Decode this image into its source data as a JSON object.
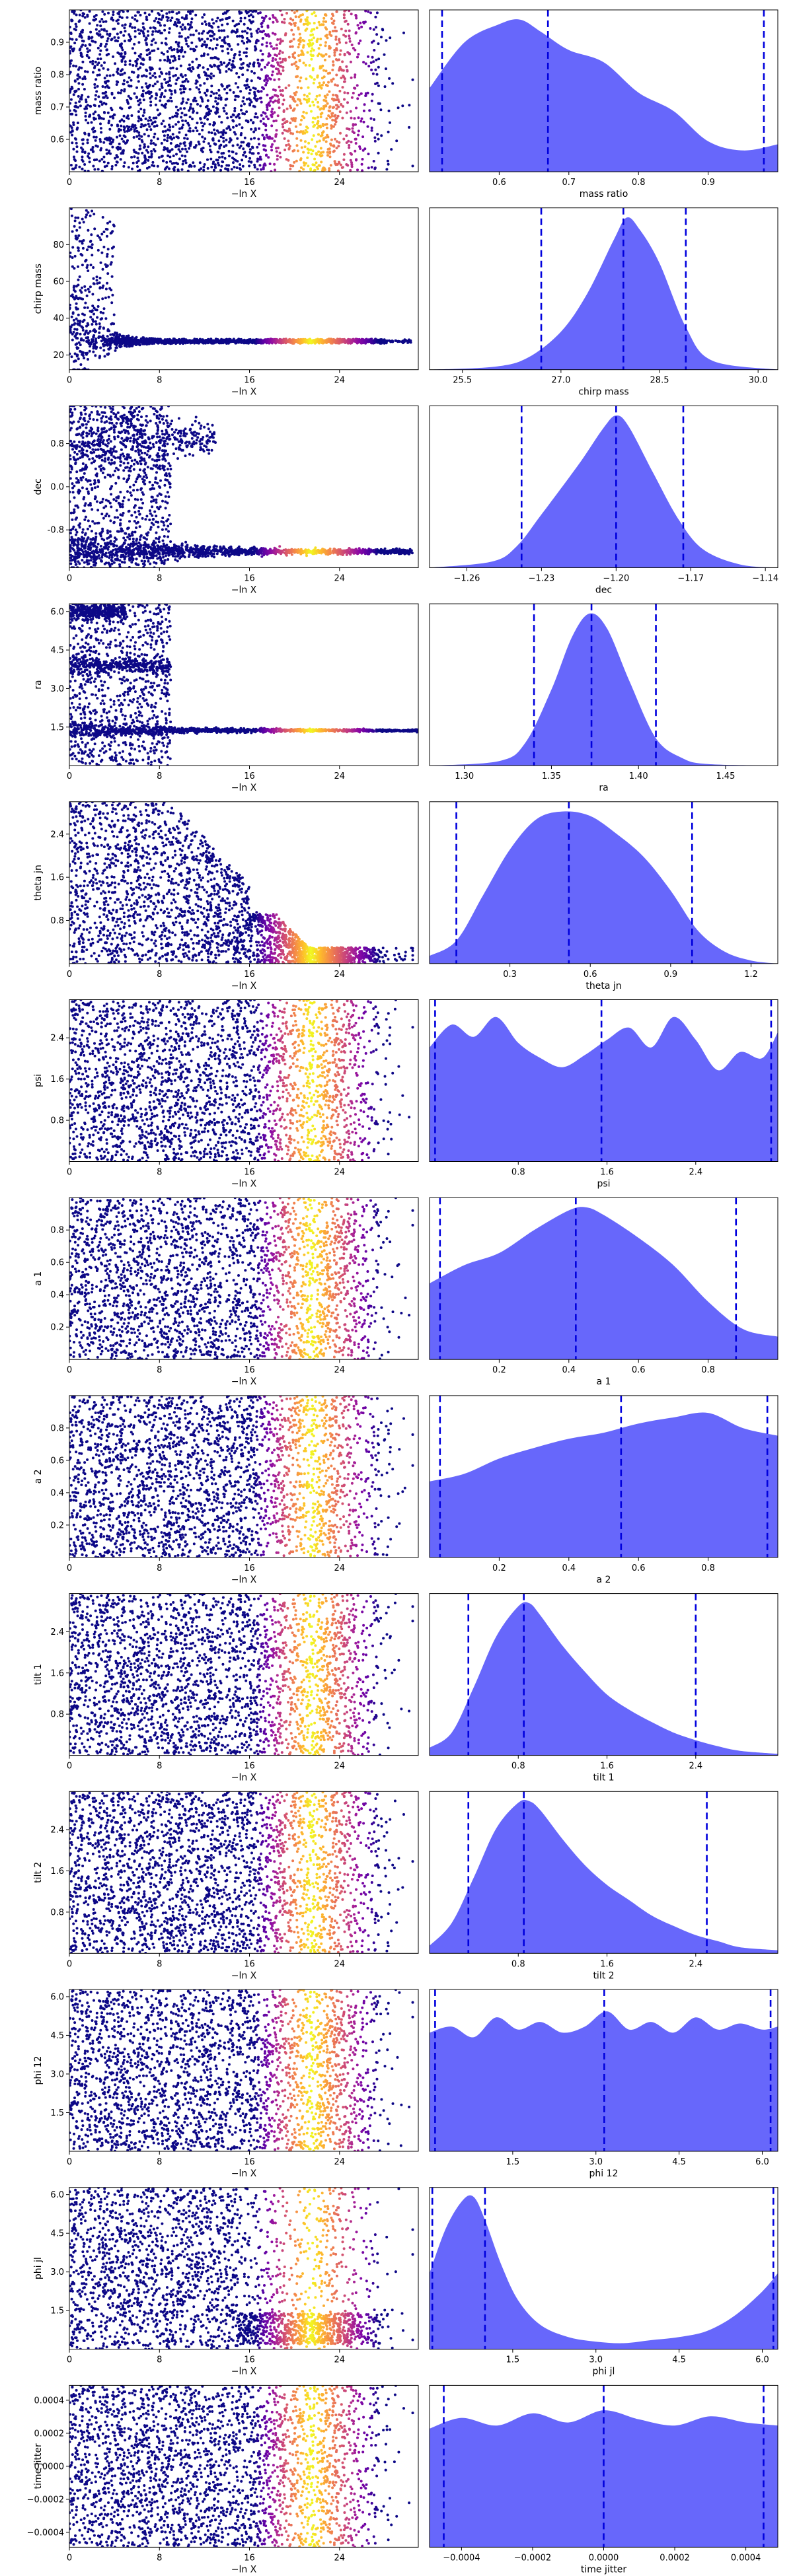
{
  "chart_data": [
    {
      "type": "scatter",
      "ylabel": "mass ratio",
      "xlabel": "−ln X",
      "x_ticks": [
        "0",
        "8",
        "16",
        "24"
      ],
      "y_ticks": [
        "0.6",
        "0.7",
        "0.8",
        "0.9"
      ],
      "x_range": [
        0,
        31
      ],
      "y_range": [
        0.5,
        1.0
      ],
      "pattern": "uniform",
      "colormap": "plasma",
      "posterior": {
        "xlabel": "mass ratio",
        "x_ticks": [
          "0.6",
          "0.7",
          "0.8",
          "0.9"
        ],
        "x_range": [
          0.5,
          1.0
        ],
        "quantiles": [
          0.518,
          0.67,
          0.98
        ],
        "density_x": [
          0.5,
          0.55,
          0.6,
          0.63,
          0.66,
          0.7,
          0.75,
          0.8,
          0.85,
          0.9,
          0.95,
          1.0
        ],
        "density_y": [
          0.55,
          0.85,
          0.97,
          1.0,
          0.92,
          0.8,
          0.72,
          0.52,
          0.4,
          0.2,
          0.14,
          0.18
        ]
      }
    },
    {
      "type": "scatter",
      "ylabel": "chirp mass",
      "xlabel": "−ln X",
      "x_ticks": [
        "0",
        "8",
        "16",
        "24"
      ],
      "y_ticks": [
        "20",
        "40",
        "60",
        "80"
      ],
      "x_range": [
        0,
        31
      ],
      "y_range": [
        12,
        100
      ],
      "pattern": "funnel",
      "colormap": "plasma",
      "posterior": {
        "xlabel": "chirp mass",
        "x_ticks": [
          "25.5",
          "27.0",
          "28.5",
          "30.0"
        ],
        "x_range": [
          25.0,
          30.3
        ],
        "quantiles": [
          26.7,
          27.95,
          28.9
        ],
        "density_x": [
          25.0,
          26.0,
          26.5,
          27.0,
          27.4,
          27.8,
          28.0,
          28.2,
          28.5,
          28.9,
          29.3,
          30.3
        ],
        "density_y": [
          0.0,
          0.02,
          0.08,
          0.25,
          0.5,
          0.85,
          1.0,
          0.92,
          0.7,
          0.28,
          0.06,
          0.0
        ]
      }
    },
    {
      "type": "scatter",
      "ylabel": "dec",
      "xlabel": "−ln X",
      "x_ticks": [
        "0",
        "8",
        "16",
        "24"
      ],
      "y_ticks": [
        "-0.8",
        "0.0",
        "0.8"
      ],
      "x_range": [
        0,
        31
      ],
      "y_range": [
        -1.5,
        1.5
      ],
      "pattern": "dec",
      "colormap": "plasma",
      "posterior": {
        "xlabel": "dec",
        "x_ticks": [
          "−1.26",
          "−1.23",
          "−1.20",
          "−1.17",
          "−1.14"
        ],
        "x_range": [
          -1.275,
          -1.135
        ],
        "quantiles": [
          -1.238,
          -1.2,
          -1.173
        ],
        "density_x": [
          -1.275,
          -1.25,
          -1.24,
          -1.23,
          -1.215,
          -1.205,
          -1.2,
          -1.195,
          -1.185,
          -1.175,
          -1.165,
          -1.15,
          -1.135
        ],
        "density_y": [
          0.0,
          0.04,
          0.14,
          0.35,
          0.68,
          0.92,
          1.0,
          0.93,
          0.62,
          0.32,
          0.12,
          0.02,
          0.0
        ]
      }
    },
    {
      "type": "scatter",
      "ylabel": "ra",
      "xlabel": "−ln X",
      "x_ticks": [
        "0",
        "8",
        "16",
        "24"
      ],
      "y_ticks": [
        "1.5",
        "3.0",
        "4.5",
        "6.0"
      ],
      "x_range": [
        0,
        31
      ],
      "y_range": [
        0.0,
        6.3
      ],
      "pattern": "ra",
      "colormap": "plasma",
      "posterior": {
        "xlabel": "ra",
        "x_ticks": [
          "1.30",
          "1.35",
          "1.40",
          "1.45"
        ],
        "x_range": [
          1.28,
          1.48
        ],
        "quantiles": [
          1.34,
          1.373,
          1.41
        ],
        "density_x": [
          1.28,
          1.32,
          1.335,
          1.35,
          1.362,
          1.372,
          1.382,
          1.395,
          1.41,
          1.425,
          1.44,
          1.48
        ],
        "density_y": [
          0.0,
          0.03,
          0.15,
          0.5,
          0.85,
          1.0,
          0.9,
          0.55,
          0.18,
          0.05,
          0.01,
          0.0
        ]
      }
    },
    {
      "type": "scatter",
      "ylabel": "theta jn",
      "xlabel": "−ln X",
      "x_ticks": [
        "0",
        "8",
        "16",
        "24"
      ],
      "y_ticks": [
        "0.8",
        "1.6",
        "2.4"
      ],
      "x_range": [
        0,
        31
      ],
      "y_range": [
        0.0,
        3.0
      ],
      "pattern": "theta",
      "colormap": "plasma",
      "posterior": {
        "xlabel": "theta jn",
        "x_ticks": [
          "0.3",
          "0.6",
          "0.9",
          "1.2"
        ],
        "x_range": [
          0.0,
          1.3
        ],
        "quantiles": [
          0.1,
          0.52,
          0.98
        ],
        "density_x": [
          0.0,
          0.1,
          0.2,
          0.3,
          0.4,
          0.5,
          0.6,
          0.7,
          0.8,
          0.9,
          1.0,
          1.1,
          1.2,
          1.3
        ],
        "density_y": [
          0.05,
          0.15,
          0.45,
          0.75,
          0.95,
          1.0,
          0.97,
          0.85,
          0.7,
          0.48,
          0.22,
          0.08,
          0.02,
          0.0
        ]
      }
    },
    {
      "type": "scatter",
      "ylabel": "psi",
      "xlabel": "−ln X",
      "x_ticks": [
        "0",
        "8",
        "16",
        "24"
      ],
      "y_ticks": [
        "0.8",
        "1.6",
        "2.4"
      ],
      "x_range": [
        0,
        31
      ],
      "y_range": [
        0.0,
        3.14
      ],
      "pattern": "uniform",
      "colormap": "plasma",
      "posterior": {
        "xlabel": "psi",
        "x_ticks": [
          "0.8",
          "1.6",
          "2.4"
        ],
        "x_range": [
          0.0,
          3.14
        ],
        "quantiles": [
          0.05,
          1.55,
          3.08
        ],
        "density_x": [
          0.0,
          0.2,
          0.4,
          0.6,
          0.8,
          1.0,
          1.2,
          1.4,
          1.6,
          1.8,
          2.0,
          2.2,
          2.4,
          2.6,
          2.8,
          3.0,
          3.14
        ],
        "density_y": [
          0.75,
          0.9,
          0.82,
          0.95,
          0.78,
          0.68,
          0.62,
          0.7,
          0.8,
          0.88,
          0.75,
          0.95,
          0.8,
          0.6,
          0.72,
          0.68,
          0.85
        ]
      }
    },
    {
      "type": "scatter",
      "ylabel": "a 1",
      "xlabel": "−ln X",
      "x_ticks": [
        "0",
        "8",
        "16",
        "24"
      ],
      "y_ticks": [
        "0.2",
        "0.4",
        "0.6",
        "0.8"
      ],
      "x_range": [
        0,
        31
      ],
      "y_range": [
        0.0,
        1.0
      ],
      "pattern": "uniform",
      "colormap": "plasma",
      "posterior": {
        "xlabel": "a 1",
        "x_ticks": [
          "0.2",
          "0.4",
          "0.6",
          "0.8"
        ],
        "x_range": [
          0.0,
          1.0
        ],
        "quantiles": [
          0.03,
          0.42,
          0.88
        ],
        "density_x": [
          0.0,
          0.1,
          0.2,
          0.3,
          0.4,
          0.45,
          0.5,
          0.6,
          0.7,
          0.8,
          0.9,
          1.0
        ],
        "density_y": [
          0.5,
          0.62,
          0.7,
          0.85,
          0.98,
          1.0,
          0.95,
          0.8,
          0.62,
          0.38,
          0.2,
          0.15
        ]
      }
    },
    {
      "type": "scatter",
      "ylabel": "a 2",
      "xlabel": "−ln X",
      "x_ticks": [
        "0",
        "8",
        "16",
        "24"
      ],
      "y_ticks": [
        "0.2",
        "0.4",
        "0.6",
        "0.8"
      ],
      "x_range": [
        0,
        31
      ],
      "y_range": [
        0.0,
        1.0
      ],
      "pattern": "uniform",
      "colormap": "plasma",
      "posterior": {
        "xlabel": "a 2",
        "x_ticks": [
          "0.2",
          "0.4",
          "0.6",
          "0.8"
        ],
        "x_range": [
          0.0,
          1.0
        ],
        "quantiles": [
          0.03,
          0.55,
          0.97
        ],
        "density_x": [
          0.0,
          0.1,
          0.2,
          0.3,
          0.4,
          0.5,
          0.6,
          0.7,
          0.8,
          0.9,
          1.0
        ],
        "density_y": [
          0.5,
          0.55,
          0.65,
          0.72,
          0.78,
          0.82,
          0.88,
          0.92,
          0.95,
          0.85,
          0.8
        ]
      }
    },
    {
      "type": "scatter",
      "ylabel": "tilt 1",
      "xlabel": "−ln X",
      "x_ticks": [
        "0",
        "8",
        "16",
        "24"
      ],
      "y_ticks": [
        "0.8",
        "1.6",
        "2.4"
      ],
      "x_range": [
        0,
        31
      ],
      "y_range": [
        0.0,
        3.14
      ],
      "pattern": "uniform",
      "colormap": "plasma",
      "posterior": {
        "xlabel": "tilt 1",
        "x_ticks": [
          "0.8",
          "1.6",
          "2.4"
        ],
        "x_range": [
          0.0,
          3.14
        ],
        "quantiles": [
          0.35,
          0.85,
          2.4
        ],
        "density_x": [
          0.0,
          0.2,
          0.4,
          0.6,
          0.8,
          0.9,
          1.0,
          1.2,
          1.4,
          1.6,
          1.8,
          2.0,
          2.2,
          2.4,
          2.6,
          2.8,
          3.14
        ],
        "density_y": [
          0.05,
          0.15,
          0.45,
          0.78,
          0.98,
          1.0,
          0.92,
          0.72,
          0.55,
          0.4,
          0.3,
          0.22,
          0.15,
          0.1,
          0.06,
          0.03,
          0.01
        ]
      }
    },
    {
      "type": "scatter",
      "ylabel": "tilt 2",
      "xlabel": "−ln X",
      "x_ticks": [
        "0",
        "8",
        "16",
        "24"
      ],
      "y_ticks": [
        "0.8",
        "1.6",
        "2.4"
      ],
      "x_range": [
        0,
        31
      ],
      "y_range": [
        0.0,
        3.14
      ],
      "pattern": "uniform",
      "colormap": "plasma",
      "posterior": {
        "xlabel": "tilt 2",
        "x_ticks": [
          "0.8",
          "1.6",
          "2.4"
        ],
        "x_range": [
          0.0,
          3.14
        ],
        "quantiles": [
          0.35,
          0.85,
          2.5
        ],
        "density_x": [
          0.0,
          0.2,
          0.4,
          0.6,
          0.8,
          0.9,
          1.0,
          1.2,
          1.4,
          1.6,
          1.8,
          2.0,
          2.2,
          2.4,
          2.6,
          2.8,
          3.14
        ],
        "density_y": [
          0.05,
          0.2,
          0.5,
          0.82,
          0.99,
          1.0,
          0.94,
          0.75,
          0.58,
          0.45,
          0.35,
          0.25,
          0.18,
          0.12,
          0.08,
          0.04,
          0.02
        ]
      }
    },
    {
      "type": "scatter",
      "ylabel": "phi 12",
      "xlabel": "−ln X",
      "x_ticks": [
        "0",
        "8",
        "16",
        "24"
      ],
      "y_ticks": [
        "1.5",
        "3.0",
        "4.5",
        "6.0"
      ],
      "x_range": [
        0,
        31
      ],
      "y_range": [
        0.0,
        6.28
      ],
      "pattern": "uniform",
      "colormap": "plasma",
      "posterior": {
        "xlabel": "phi 12",
        "x_ticks": [
          "1.5",
          "3.0",
          "4.5",
          "6.0"
        ],
        "x_range": [
          0.0,
          6.28
        ],
        "quantiles": [
          0.1,
          3.15,
          6.15
        ],
        "density_x": [
          0.0,
          0.4,
          0.8,
          1.2,
          1.6,
          2.0,
          2.4,
          2.8,
          3.2,
          3.6,
          4.0,
          4.4,
          4.8,
          5.2,
          5.6,
          6.0,
          6.28
        ],
        "density_y": [
          0.78,
          0.82,
          0.75,
          0.88,
          0.8,
          0.85,
          0.78,
          0.82,
          0.92,
          0.8,
          0.85,
          0.78,
          0.88,
          0.8,
          0.84,
          0.8,
          0.82
        ]
      }
    },
    {
      "type": "scatter",
      "ylabel": "phi jl",
      "xlabel": "−ln X",
      "x_ticks": [
        "0",
        "8",
        "16",
        "24"
      ],
      "y_ticks": [
        "1.5",
        "3.0",
        "4.5",
        "6.0"
      ],
      "x_range": [
        0,
        31
      ],
      "y_range": [
        0.0,
        6.28
      ],
      "pattern": "phijl",
      "colormap": "plasma",
      "posterior": {
        "xlabel": "phi jl",
        "x_ticks": [
          "1.5",
          "3.0",
          "4.5",
          "6.0"
        ],
        "x_range": [
          0.0,
          6.28
        ],
        "quantiles": [
          0.05,
          1.0,
          6.2
        ],
        "density_x": [
          0.0,
          0.3,
          0.6,
          0.8,
          1.0,
          1.3,
          1.6,
          2.0,
          2.5,
          3.0,
          3.5,
          4.0,
          4.5,
          5.0,
          5.5,
          6.0,
          6.28
        ],
        "density_y": [
          0.5,
          0.8,
          0.98,
          1.0,
          0.85,
          0.55,
          0.32,
          0.16,
          0.08,
          0.05,
          0.04,
          0.06,
          0.08,
          0.12,
          0.22,
          0.38,
          0.5
        ]
      }
    },
    {
      "type": "scatter",
      "ylabel": "time jitter",
      "xlabel": "−ln X",
      "x_ticks": [
        "0",
        "8",
        "16",
        "24"
      ],
      "y_ticks": [
        "−0.0004",
        "−0.0002",
        "0.0000",
        "0.0002",
        "0.0004"
      ],
      "x_range": [
        0,
        31
      ],
      "y_range": [
        -0.00049,
        0.00049
      ],
      "pattern": "uniform",
      "colormap": "plasma",
      "posterior": {
        "xlabel": "time jitter",
        "x_ticks": [
          "−0.0004",
          "−0.0002",
          "0.0000",
          "0.0002",
          "0.0004"
        ],
        "x_range": [
          -0.00049,
          0.00049
        ],
        "quantiles": [
          -0.00045,
          0.0,
          0.00045
        ],
        "density_x": [
          -0.00049,
          -0.0004,
          -0.0003,
          -0.0002,
          -0.0001,
          0.0,
          0.0001,
          0.0002,
          0.0003,
          0.0004,
          0.00049
        ],
        "density_y": [
          0.78,
          0.85,
          0.8,
          0.88,
          0.82,
          0.9,
          0.84,
          0.8,
          0.86,
          0.82,
          0.8
        ]
      }
    }
  ]
}
